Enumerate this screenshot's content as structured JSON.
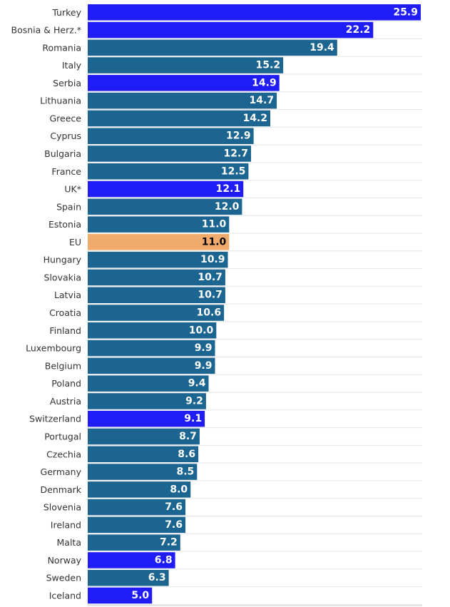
{
  "chart_data": {
    "type": "bar",
    "orientation": "horizontal",
    "categories": [
      "Turkey",
      "Bosnia & Herz.*",
      "Romania",
      "Italy",
      "Serbia",
      "Lithuania",
      "Greece",
      "Cyprus",
      "Bulgaria",
      "France",
      "UK*",
      "Spain",
      "Estonia",
      "EU",
      "Hungary",
      "Slovakia",
      "Latvia",
      "Croatia",
      "Finland",
      "Luxembourg",
      "Belgium",
      "Poland",
      "Austria",
      "Switzerland",
      "Portugal",
      "Czechia",
      "Germany",
      "Denmark",
      "Slovenia",
      "Ireland",
      "Malta",
      "Norway",
      "Sweden",
      "Iceland"
    ],
    "values": [
      25.9,
      22.2,
      19.4,
      15.2,
      14.9,
      14.7,
      14.2,
      12.9,
      12.7,
      12.5,
      12.1,
      12.0,
      11.0,
      11.0,
      10.9,
      10.7,
      10.7,
      10.6,
      10.0,
      9.9,
      9.9,
      9.4,
      9.2,
      9.1,
      8.7,
      8.6,
      8.5,
      8.0,
      7.6,
      7.6,
      7.2,
      6.8,
      6.3,
      5.0
    ],
    "value_labels": [
      "25.9",
      "22.2",
      "19.4",
      "15.2",
      "14.9",
      "14.7",
      "14.2",
      "12.9",
      "12.7",
      "12.5",
      "12.1",
      "12.0",
      "11.0",
      "11.0",
      "10.9",
      "10.7",
      "10.7",
      "10.6",
      "10.0",
      "9.9",
      "9.9",
      "9.4",
      "9.2",
      "9.1",
      "8.7",
      "8.6",
      "8.5",
      "8.0",
      "7.6",
      "7.6",
      "7.2",
      "6.8",
      "6.3",
      "5.0"
    ],
    "groups": [
      "non-eu",
      "non-eu",
      "eu",
      "eu",
      "non-eu",
      "eu",
      "eu",
      "eu",
      "eu",
      "eu",
      "non-eu",
      "eu",
      "eu",
      "eu-average",
      "eu",
      "eu",
      "eu",
      "eu",
      "eu",
      "eu",
      "eu",
      "eu",
      "eu",
      "non-eu",
      "eu",
      "eu",
      "eu",
      "eu",
      "eu",
      "eu",
      "eu",
      "non-eu",
      "eu",
      "non-eu"
    ],
    "xlim": [
      0,
      25.9
    ],
    "grid": true,
    "colors": {
      "eu": "#1b6590",
      "non-eu": "#1f1cf5",
      "eu-average": "#f0ab6c",
      "label_on_dark": "#ffffff",
      "label_on_light": "#000000"
    }
  }
}
